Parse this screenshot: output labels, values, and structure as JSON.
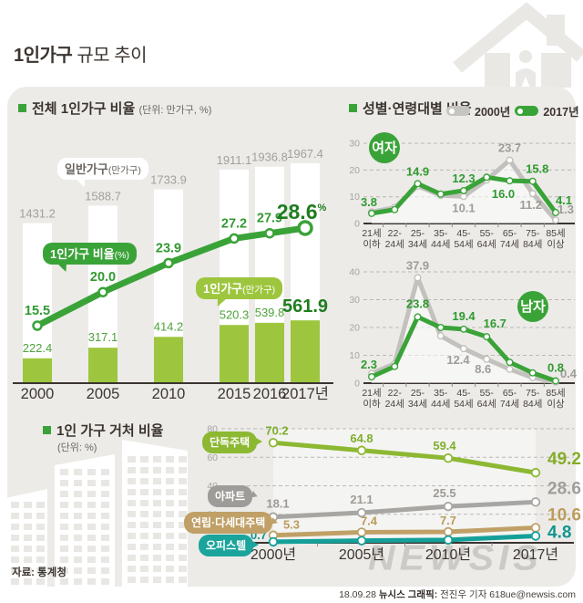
{
  "page": {
    "title_bold": "1인가구",
    "title_rest": " 규모 추이"
  },
  "sections": {
    "total": {
      "title": "전체 1인가구 비율",
      "unit": "(단위: 만가구, %)"
    },
    "gender": {
      "title": "성별·연령대별 비율",
      "legend": [
        {
          "label": "2000년",
          "color": "#c7c5c2"
        },
        {
          "label": "2017년",
          "color": "#3aa338"
        }
      ]
    },
    "housing": {
      "title": "1인 가구 거처 비율",
      "unit": "(단위: %)"
    }
  },
  "callouts": {
    "general": {
      "main": "일반가구",
      "sub": "(만가구)"
    },
    "single_ratio": {
      "main": "1인가구 비율",
      "sub": "(%)"
    },
    "single_count": {
      "main": "1인가구",
      "sub": "(만가구)"
    }
  },
  "footer": {
    "source": "자료: 통계청",
    "credit_date": "18.09.28",
    "credit_bold": "뉴시스 그래픽:",
    "credit_rest": " 전진우 기자 618ue@newsis.com",
    "watermark": "NEWSIS"
  },
  "colors": {
    "accent_green": "#3aa338",
    "dark_green": "#1e7d1f",
    "bar_green": "#9dc63e",
    "house_line": "#8cb832",
    "apt_line": "#a8a6a3",
    "row_line": "#c0a067",
    "officetel_line": "#14a099",
    "gray_2000": "#c3c1be",
    "panel": "#ecebe8"
  },
  "chart_data": [
    {
      "id": "total_single_households",
      "type": "bar",
      "title": "전체 1인가구 비율",
      "ylabel": "만가구, %",
      "categories": [
        "2000",
        "2005",
        "2010",
        "2015",
        "2016",
        "2017년"
      ],
      "series": [
        {
          "name": "일반가구(만가구)",
          "type": "bar",
          "color": "#ffffff",
          "values": [
            1431.2,
            1588.7,
            1733.9,
            1911.1,
            1936.8,
            1967.4
          ]
        },
        {
          "name": "1인가구(만가구)",
          "type": "bar",
          "color": "#9dc63e",
          "values": [
            222.4,
            317.1,
            414.2,
            520.3,
            539.8,
            561.9
          ]
        },
        {
          "name": "1인가구 비율(%)",
          "type": "line",
          "color": "#3aa338",
          "values": [
            15.5,
            20.0,
            23.9,
            27.2,
            27.9,
            28.6
          ],
          "last_unit": "%"
        }
      ]
    },
    {
      "id": "female_by_age",
      "type": "line",
      "title": "여자",
      "categories": [
        "21세 이하",
        "22-24세",
        "25-34세",
        "35-44세",
        "45-54세",
        "55-64세",
        "65-74세",
        "75-84세",
        "85세 이상"
      ],
      "tick_lines": [
        [
          "21세",
          "이하"
        ],
        [
          "22-",
          "24세"
        ],
        [
          "25-",
          "34세"
        ],
        [
          "35-",
          "44세"
        ],
        [
          "45-",
          "54세"
        ],
        [
          "55-",
          "64세"
        ],
        [
          "65-",
          "74세"
        ],
        [
          "75-",
          "84세"
        ],
        [
          "85세",
          "이상"
        ]
      ],
      "ylim": [
        0,
        33
      ],
      "yticks": [
        0,
        10,
        20,
        30
      ],
      "grid": "dashed",
      "series": [
        {
          "name": "2000년",
          "color": "#c3c1be",
          "values": [
            4.3,
            6.0,
            14.0,
            10.5,
            10.1,
            16.3,
            23.7,
            11.2,
            1.3
          ],
          "labels": [
            null,
            null,
            null,
            null,
            "10.1",
            null,
            "23.7",
            "11.2",
            "1.3"
          ]
        },
        {
          "name": "2017년",
          "color": "#3aa338",
          "values": [
            3.8,
            5.2,
            14.9,
            11.0,
            12.3,
            17.3,
            16.0,
            15.8,
            4.1
          ],
          "labels": [
            "3.8",
            null,
            "14.9",
            null,
            "12.3",
            null,
            "16.0",
            "15.8",
            "4.1"
          ]
        }
      ]
    },
    {
      "id": "male_by_age",
      "type": "line",
      "title": "남자",
      "categories": [
        "21세 이하",
        "22-24세",
        "25-34세",
        "35-44세",
        "45-54세",
        "55-64세",
        "65-74세",
        "75-84세",
        "85세 이상"
      ],
      "tick_lines": [
        [
          "21세",
          "이하"
        ],
        [
          "22-",
          "24세"
        ],
        [
          "25-",
          "34세"
        ],
        [
          "35-",
          "44세"
        ],
        [
          "45-",
          "54세"
        ],
        [
          "55-",
          "64세"
        ],
        [
          "65-",
          "74세"
        ],
        [
          "75-",
          "84세"
        ],
        [
          "85세",
          "이상"
        ]
      ],
      "ylim": [
        0,
        43
      ],
      "yticks": [
        0,
        10,
        20,
        30,
        40
      ],
      "grid": "dashed",
      "series": [
        {
          "name": "2000년",
          "color": "#c3c1be",
          "values": [
            3.5,
            7.0,
            37.9,
            17.0,
            12.4,
            8.6,
            5.0,
            2.0,
            0.4
          ],
          "labels": [
            null,
            null,
            "37.9",
            null,
            "12.4",
            "8.6",
            null,
            null,
            "0.4"
          ]
        },
        {
          "name": "2017년",
          "color": "#3aa338",
          "values": [
            2.3,
            6.0,
            23.8,
            20.0,
            19.4,
            16.7,
            7.5,
            3.7,
            0.8
          ],
          "labels": [
            "2.3",
            null,
            "23.8",
            null,
            "19.4",
            "16.7",
            null,
            null,
            "0.8"
          ]
        }
      ]
    },
    {
      "id": "housing_type_share",
      "type": "line",
      "title": "1인 가구 거처 비율",
      "categories": [
        "2000년",
        "2005년",
        "2010년",
        "2017년"
      ],
      "ylim": [
        0,
        85
      ],
      "yticks": [
        0,
        20,
        40,
        60,
        80
      ],
      "grid": "dashed",
      "series": [
        {
          "name": "단독주택",
          "color": "#8cb832",
          "values": [
            70.2,
            64.8,
            59.4,
            49.2
          ],
          "labels": [
            "70.2",
            "64.8",
            "59.4",
            "49.2"
          ]
        },
        {
          "name": "아파트",
          "color": "#a8a6a3",
          "values": [
            18.1,
            21.1,
            25.5,
            28.6
          ],
          "labels": [
            "18.1",
            "21.1",
            "25.5",
            "28.6"
          ]
        },
        {
          "name": "연립·다세대주택",
          "color": "#c0a067",
          "values": [
            5.3,
            7.4,
            7.7,
            10.6
          ],
          "labels": [
            "5.3",
            "7.4",
            "7.7",
            "10.6"
          ]
        },
        {
          "name": "오피스텔",
          "color": "#14a099",
          "values": [
            0.7,
            1.5,
            2.0,
            4.8
          ],
          "labels": [
            "0.7",
            null,
            null,
            "4.8"
          ]
        }
      ]
    }
  ]
}
